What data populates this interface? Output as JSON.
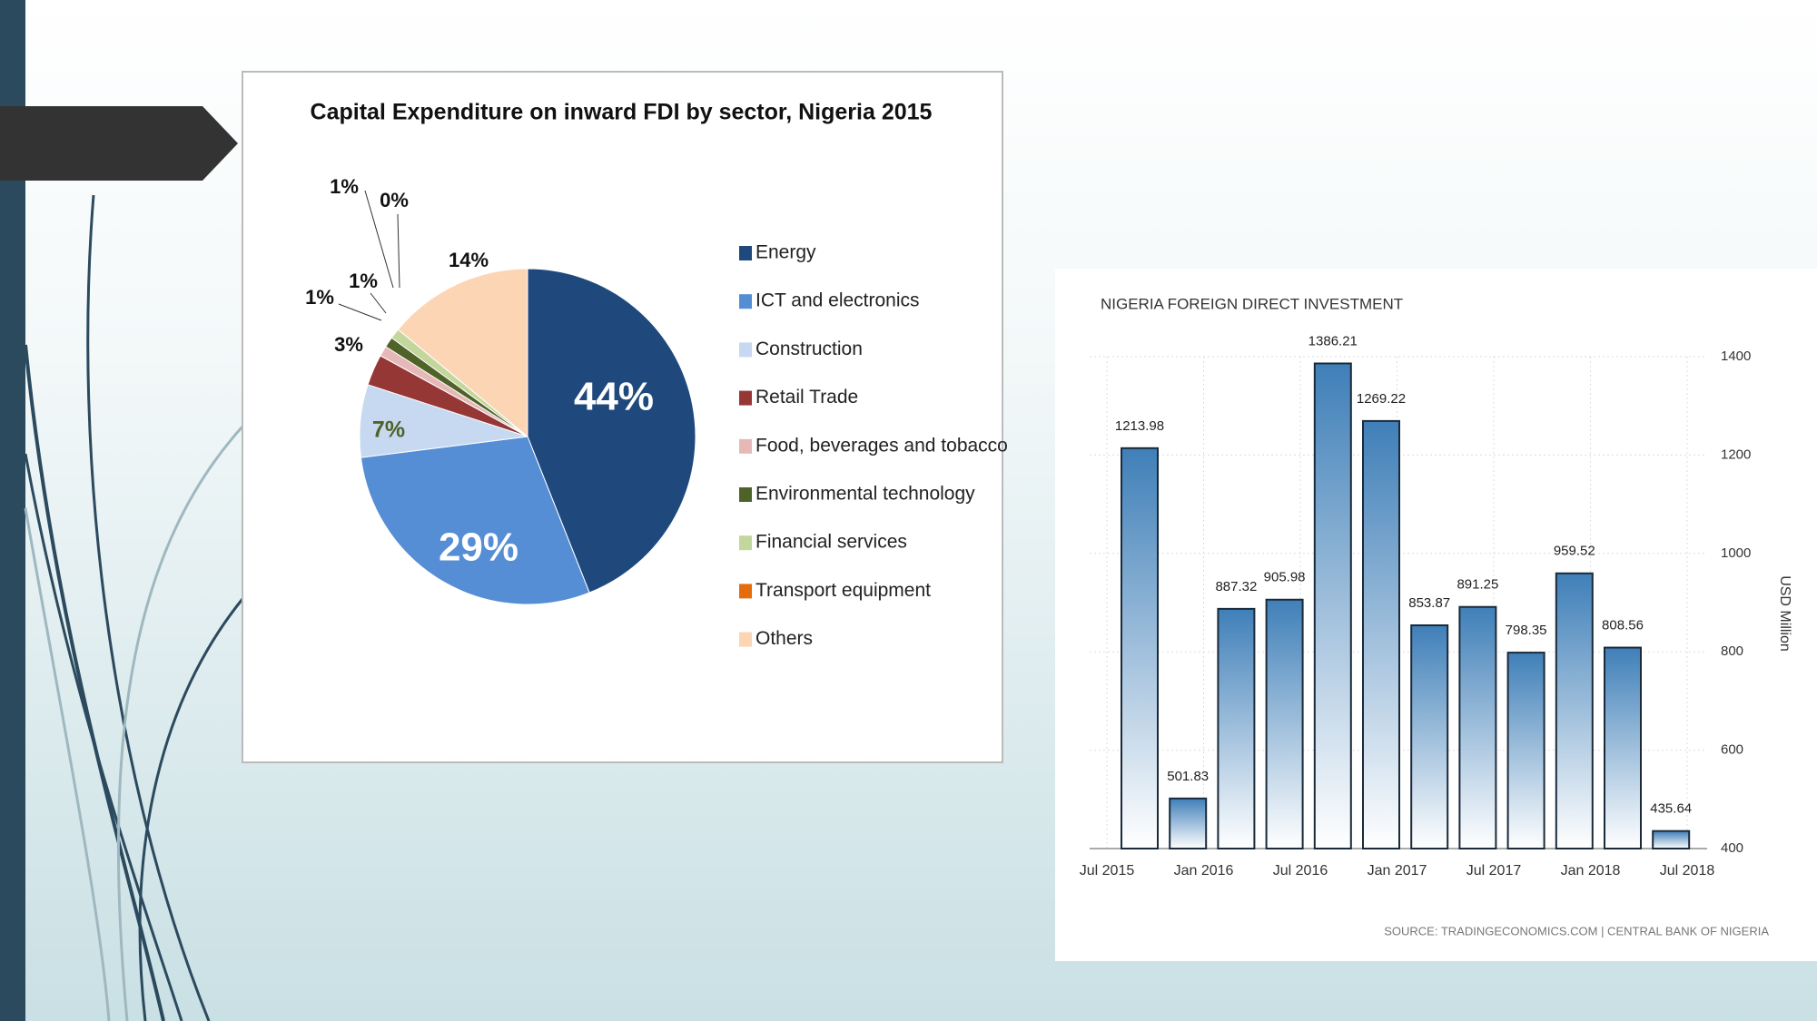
{
  "chart_data": [
    {
      "type": "pie",
      "title": "Capital Expenditure on inward FDI by sector, Nigeria 2015",
      "categories": [
        "Energy",
        "ICT and electronics",
        "Construction",
        "Retail Trade",
        "Food, beverages and tobacco",
        "Environmental technology",
        "Financial services",
        "Transport equipment",
        "Others"
      ],
      "values": [
        44,
        29,
        7,
        3,
        1,
        1,
        1,
        0,
        14
      ],
      "value_labels": [
        "44%",
        "29%",
        "7%",
        "3%",
        "1%",
        "1%",
        "1%",
        "0%",
        "14%"
      ],
      "colors": [
        "#1f497d",
        "#558ed5",
        "#c6d9f1",
        "#953735",
        "#e6b9b8",
        "#4f6228",
        "#c3d69b",
        "#e46c0a",
        "#fcd5b5"
      ],
      "legend": "right"
    },
    {
      "type": "bar",
      "title": "NIGERIA FOREIGN DIRECT INVESTMENT",
      "categories": [
        null,
        null,
        null,
        null,
        null,
        null,
        null,
        null,
        null,
        null,
        null,
        null
      ],
      "values": [
        1213.98,
        501.83,
        887.32,
        905.98,
        1386.21,
        1269.22,
        853.87,
        891.25,
        798.35,
        959.52,
        808.56,
        435.64
      ],
      "color": "#2f6ea8",
      "xticks": [
        "Jul 2015",
        "Jan 2016",
        "Jul 2016",
        "Jan 2017",
        "Jul 2017",
        "Jan 2018",
        "Jul 2018"
      ],
      "ylim": [
        400,
        1400
      ],
      "yticks": [
        400,
        600,
        800,
        1000,
        1200,
        1400
      ],
      "y_axis_side": "right",
      "y_label": "USD Million",
      "grid": true,
      "source": "SOURCE: TRADINGECONOMICS.COM | CENTRAL BANK OF NIGERIA"
    }
  ]
}
